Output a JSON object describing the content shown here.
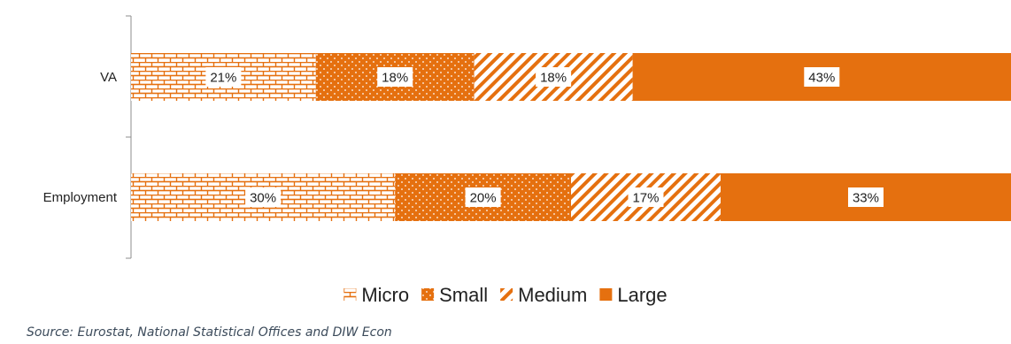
{
  "chart_data": {
    "type": "bar",
    "orientation": "horizontal",
    "stacked": true,
    "categories": [
      "VA",
      "Employment"
    ],
    "series": [
      {
        "name": "Micro",
        "values": [
          21,
          30
        ],
        "labels": [
          "21%",
          "30%"
        ],
        "pattern": "brick"
      },
      {
        "name": "Small",
        "values": [
          18,
          20
        ],
        "labels": [
          "18%",
          "20%"
        ],
        "pattern": "dots"
      },
      {
        "name": "Medium",
        "values": [
          18,
          17
        ],
        "labels": [
          "18%",
          "17%"
        ],
        "pattern": "diagonal"
      },
      {
        "name": "Large",
        "values": [
          43,
          33
        ],
        "labels": [
          "43%",
          "33%"
        ],
        "pattern": "solid"
      }
    ],
    "xlim": [
      0,
      100
    ],
    "grid": false,
    "legend_position": "bottom",
    "colors": {
      "accent": "#e5700f",
      "text": "#222222",
      "background": "#ffffff"
    }
  },
  "source": "Source: Eurostat, National Statistical Offices and DIW Econ"
}
